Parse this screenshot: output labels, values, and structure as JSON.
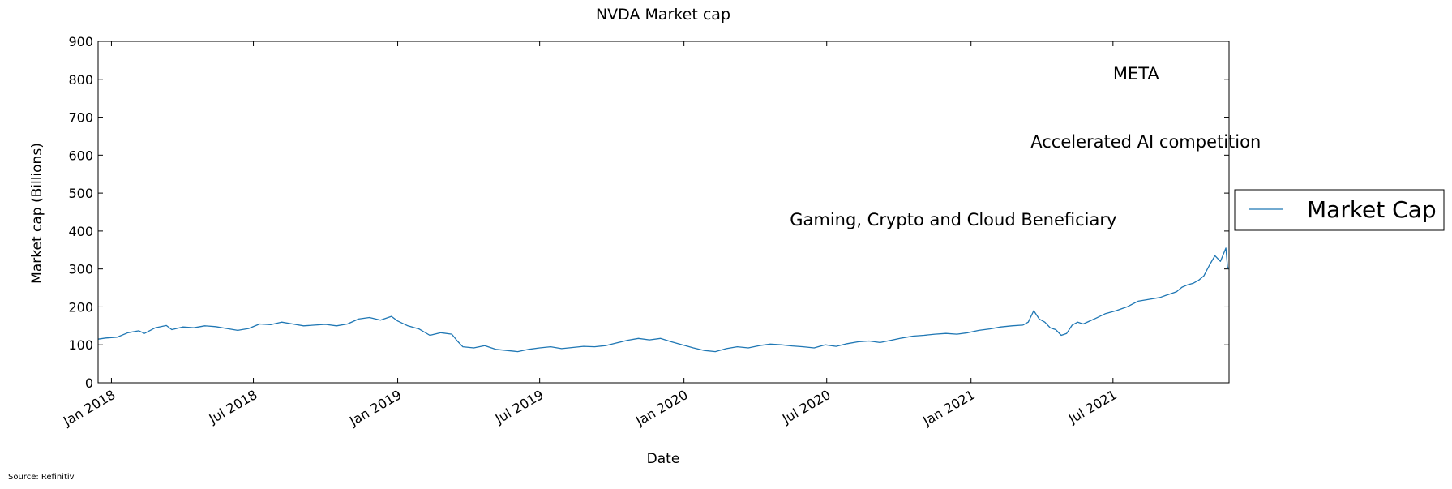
{
  "chart_data": {
    "type": "line",
    "title": "NVDA Market cap",
    "xlabel": "Date",
    "ylabel": "Market cap (Billions)",
    "xlim": [
      "2017-12-15",
      "2021-11-26"
    ],
    "ylim": [
      0,
      900
    ],
    "x_ticks": [
      "Jan 2018",
      "Jul 2018",
      "Jan 2019",
      "Jul 2019",
      "Jan 2020",
      "Jul 2020",
      "Jan 2021",
      "Jul 2021"
    ],
    "x_tick_dates": [
      "2018-01-01",
      "2018-07-01",
      "2019-01-01",
      "2019-07-01",
      "2020-01-01",
      "2020-07-01",
      "2021-01-01",
      "2021-07-01"
    ],
    "y_ticks": [
      "0",
      "100",
      "200",
      "300",
      "400",
      "500",
      "600",
      "700",
      "800",
      "900"
    ],
    "grid": false,
    "legend_position": "outside-right",
    "series": [
      {
        "name": "Market Cap",
        "color": "#1f77b4",
        "points": [
          [
            "2017-12-15",
            115
          ],
          [
            "2017-12-25",
            118
          ],
          [
            "2018-01-08",
            120
          ],
          [
            "2018-01-22",
            132
          ],
          [
            "2018-02-05",
            137
          ],
          [
            "2018-02-12",
            130
          ],
          [
            "2018-02-26",
            145
          ],
          [
            "2018-03-12",
            151
          ],
          [
            "2018-03-19",
            140
          ],
          [
            "2018-04-02",
            147
          ],
          [
            "2018-04-16",
            145
          ],
          [
            "2018-04-30",
            150
          ],
          [
            "2018-05-14",
            148
          ],
          [
            "2018-05-28",
            143
          ],
          [
            "2018-06-11",
            138
          ],
          [
            "2018-06-25",
            143
          ],
          [
            "2018-07-09",
            155
          ],
          [
            "2018-07-23",
            153
          ],
          [
            "2018-08-06",
            160
          ],
          [
            "2018-08-20",
            155
          ],
          [
            "2018-09-03",
            150
          ],
          [
            "2018-09-17",
            152
          ],
          [
            "2018-10-01",
            154
          ],
          [
            "2018-10-15",
            150
          ],
          [
            "2018-10-29",
            155
          ],
          [
            "2018-11-12",
            168
          ],
          [
            "2018-11-26",
            172
          ],
          [
            "2018-12-10",
            165
          ],
          [
            "2018-12-24",
            175
          ],
          [
            "2019-01-01",
            163
          ],
          [
            "2019-01-14",
            150
          ],
          [
            "2019-01-28",
            142
          ],
          [
            "2019-02-11",
            125
          ],
          [
            "2019-02-25",
            132
          ],
          [
            "2019-03-11",
            128
          ],
          [
            "2019-03-18",
            110
          ],
          [
            "2019-03-25",
            95
          ],
          [
            "2019-04-08",
            92
          ],
          [
            "2019-04-22",
            98
          ],
          [
            "2019-05-06",
            88
          ],
          [
            "2019-05-20",
            85
          ],
          [
            "2019-06-03",
            82
          ],
          [
            "2019-06-17",
            88
          ],
          [
            "2019-07-01",
            92
          ],
          [
            "2019-07-15",
            95
          ],
          [
            "2019-07-29",
            90
          ],
          [
            "2019-08-12",
            93
          ],
          [
            "2019-08-26",
            96
          ],
          [
            "2019-09-09",
            95
          ],
          [
            "2019-09-23",
            98
          ],
          [
            "2019-10-07",
            105
          ],
          [
            "2019-10-21",
            112
          ],
          [
            "2019-11-04",
            117
          ],
          [
            "2019-11-18",
            113
          ],
          [
            "2019-12-02",
            117
          ],
          [
            "2019-12-16",
            108
          ],
          [
            "2019-12-30",
            100
          ],
          [
            "2020-01-13",
            92
          ],
          [
            "2020-01-27",
            85
          ],
          [
            "2020-02-10",
            82
          ],
          [
            "2020-02-24",
            90
          ],
          [
            "2020-03-09",
            95
          ],
          [
            "2020-03-23",
            92
          ],
          [
            "2020-04-06",
            98
          ],
          [
            "2020-04-20",
            102
          ],
          [
            "2020-05-04",
            100
          ],
          [
            "2020-05-18",
            97
          ],
          [
            "2020-06-01",
            95
          ],
          [
            "2020-06-15",
            92
          ],
          [
            "2020-06-29",
            100
          ],
          [
            "2020-07-13",
            96
          ],
          [
            "2020-07-27",
            103
          ],
          [
            "2020-08-10",
            108
          ],
          [
            "2020-08-24",
            110
          ],
          [
            "2020-09-07",
            106
          ],
          [
            "2020-09-21",
            112
          ],
          [
            "2020-10-05",
            118
          ],
          [
            "2020-10-19",
            123
          ],
          [
            "2020-11-02",
            125
          ],
          [
            "2020-11-16",
            128
          ],
          [
            "2020-11-30",
            130
          ],
          [
            "2020-12-14",
            128
          ],
          [
            "2020-12-28",
            132
          ],
          [
            "2021-01-11",
            138
          ],
          [
            "2021-01-25",
            142
          ],
          [
            "2021-02-08",
            147
          ],
          [
            "2021-02-22",
            150
          ],
          [
            "2021-03-08",
            152
          ],
          [
            "2021-03-15",
            160
          ],
          [
            "2021-03-22",
            190
          ],
          [
            "2021-03-29",
            168
          ],
          [
            "2021-04-05",
            160
          ],
          [
            "2021-04-12",
            145
          ],
          [
            "2021-04-19",
            140
          ],
          [
            "2021-04-26",
            125
          ],
          [
            "2021-05-03",
            130
          ],
          [
            "2021-05-10",
            152
          ],
          [
            "2021-05-17",
            160
          ],
          [
            "2021-05-24",
            155
          ],
          [
            "2021-06-07",
            168
          ],
          [
            "2021-06-21",
            182
          ],
          [
            "2021-07-05",
            190
          ],
          [
            "2021-07-19",
            200
          ],
          [
            "2021-08-02",
            215
          ],
          [
            "2021-08-16",
            220
          ],
          [
            "2021-08-30",
            225
          ],
          [
            "2021-09-06",
            230
          ],
          [
            "2021-09-13",
            235
          ],
          [
            "2021-09-20",
            240
          ],
          [
            "2021-09-27",
            252
          ],
          [
            "2021-10-04",
            258
          ],
          [
            "2021-10-11",
            262
          ],
          [
            "2021-10-18",
            270
          ],
          [
            "2021-10-25",
            282
          ],
          [
            "2021-11-01",
            310
          ],
          [
            "2021-11-08",
            335
          ],
          [
            "2021-11-15",
            320
          ],
          [
            "2021-11-19",
            340
          ],
          [
            "2021-11-22",
            355
          ],
          [
            "2021-11-24",
            305
          ],
          [
            "2021-11-26",
            300
          ]
        ]
      }
    ],
    "annotations": [
      {
        "text": "Gaming, Crypto and Cloud Beneficiary",
        "x": "2020-05-15",
        "y": 415
      },
      {
        "text": "Accelerated AI competition",
        "x": "2021-03-18",
        "y": 620
      },
      {
        "text": "META",
        "x": "2021-07-01",
        "y": 800
      }
    ],
    "source_note": "Source: Refinitiv"
  }
}
